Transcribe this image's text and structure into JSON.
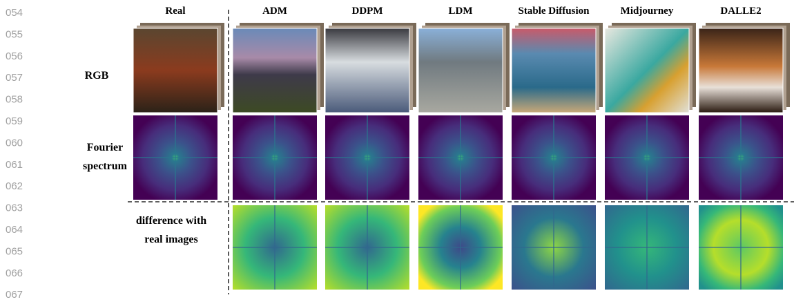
{
  "line_numbers": [
    "054",
    "055",
    "056",
    "057",
    "058",
    "059",
    "060",
    "061",
    "062",
    "063",
    "064",
    "065",
    "066",
    "067"
  ],
  "columns": [
    "Real",
    "ADM",
    "DDPM",
    "LDM",
    "Stable Diffusion",
    "Midjourney",
    "DALLE2"
  ],
  "rows": [
    {
      "label": [
        "RGB"
      ]
    },
    {
      "label": [
        "Fourier",
        "spectrum"
      ]
    },
    {
      "label": [
        "difference with",
        "real images"
      ]
    }
  ]
}
